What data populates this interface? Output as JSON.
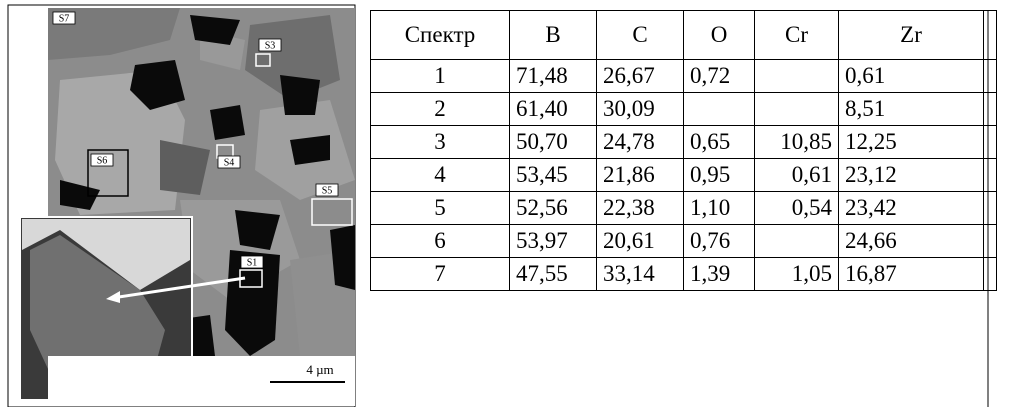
{
  "figure": {
    "labels": [
      "S7",
      "S3",
      "S6",
      "S4",
      "S5",
      "S1"
    ],
    "scale_bar": "4 µm"
  },
  "table": {
    "header": [
      "Спектр",
      "B",
      "C",
      "O",
      "Cr",
      "Zr"
    ],
    "rows": [
      [
        "1",
        "71,48",
        "26,67",
        "0,72",
        null,
        "0,61"
      ],
      [
        "2",
        "61,40",
        "30,09",
        null,
        null,
        "8,51"
      ],
      [
        "3",
        "50,70",
        "24,78",
        "0,65",
        "10,85",
        "12,25"
      ],
      [
        "4",
        "53,45",
        "21,86",
        "0,95",
        "0,61",
        "23,12"
      ],
      [
        "5",
        "52,56",
        "22,38",
        "1,10",
        "0,54",
        "23,42"
      ],
      [
        "6",
        "53,97",
        "20,61",
        "0,76",
        null,
        "24,66"
      ],
      [
        "7",
        "47,55",
        "33,14",
        "1,39",
        "1,05",
        "16,87"
      ]
    ]
  }
}
